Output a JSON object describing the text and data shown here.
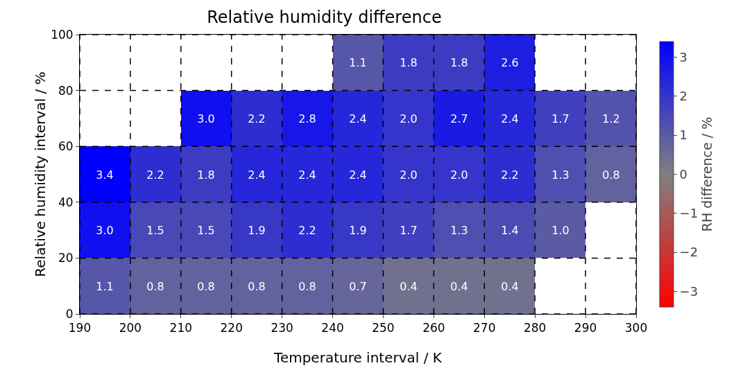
{
  "chart_data": {
    "type": "heatmap",
    "title": "Relative humidity difference",
    "xlabel": "Temperature interval / K",
    "ylabel": "Relative humidity interval / %",
    "clabel": "RH difference / %",
    "x": [
      195,
      205,
      215,
      225,
      235,
      245,
      255,
      265,
      275,
      285,
      295
    ],
    "y": [
      90,
      70,
      50,
      30,
      10
    ],
    "cells": [
      [
        null,
        null,
        null,
        null,
        null,
        1.1,
        1.8,
        1.8,
        2.6,
        null,
        null
      ],
      [
        null,
        null,
        3.0,
        2.2,
        2.8,
        2.4,
        2.0,
        2.7,
        2.4,
        1.7,
        1.2
      ],
      [
        3.4,
        2.2,
        1.8,
        2.4,
        2.4,
        2.4,
        2.0,
        2.0,
        2.2,
        1.3,
        0.8
      ],
      [
        3.0,
        1.5,
        1.5,
        1.9,
        2.2,
        1.9,
        1.7,
        1.3,
        1.4,
        1.0,
        null
      ],
      [
        1.1,
        0.8,
        0.8,
        0.8,
        0.8,
        0.7,
        0.4,
        0.4,
        0.4,
        null,
        null
      ]
    ],
    "cell_labels": [
      [
        null,
        null,
        null,
        null,
        null,
        "1.1",
        "1.8",
        "1.8",
        "2.6",
        null,
        null
      ],
      [
        null,
        null,
        "3.0",
        "2.2",
        "2.8",
        "2.4",
        "2.0",
        "2.7",
        "2.4",
        "1.7",
        "1.2"
      ],
      [
        "3.4",
        "2.2",
        "1.8",
        "2.4",
        "2.4",
        "2.4",
        "2.0",
        "2.0",
        "2.2",
        "1.3",
        "0.8"
      ],
      [
        "3.0",
        "1.5",
        "1.5",
        "1.9",
        "2.2",
        "1.9",
        "1.7",
        "1.3",
        "1.4",
        "1.0",
        null
      ],
      [
        "1.1",
        "0.8",
        "0.8",
        "0.8",
        "0.8",
        "0.7",
        "0.4",
        "0.4",
        "0.4",
        null,
        null
      ]
    ],
    "colors": [
      "#ff0000",
      "#808080",
      "#0000ff"
    ],
    "clim": [
      -3.4,
      3.4
    ],
    "cticks": [
      {
        "value": -3,
        "label": "−3"
      },
      {
        "value": -2,
        "label": "−2"
      },
      {
        "value": -1,
        "label": "−1"
      },
      0,
      1,
      2,
      3
    ],
    "xlim": [
      190,
      300
    ],
    "xticks": [
      190,
      200,
      210,
      220,
      230,
      240,
      250,
      260,
      270,
      280,
      290,
      300
    ],
    "ylim": [
      0,
      100
    ],
    "yticks": [
      0,
      20,
      40,
      60,
      80,
      100
    ],
    "grid": true,
    "line_style": "dashed"
  }
}
